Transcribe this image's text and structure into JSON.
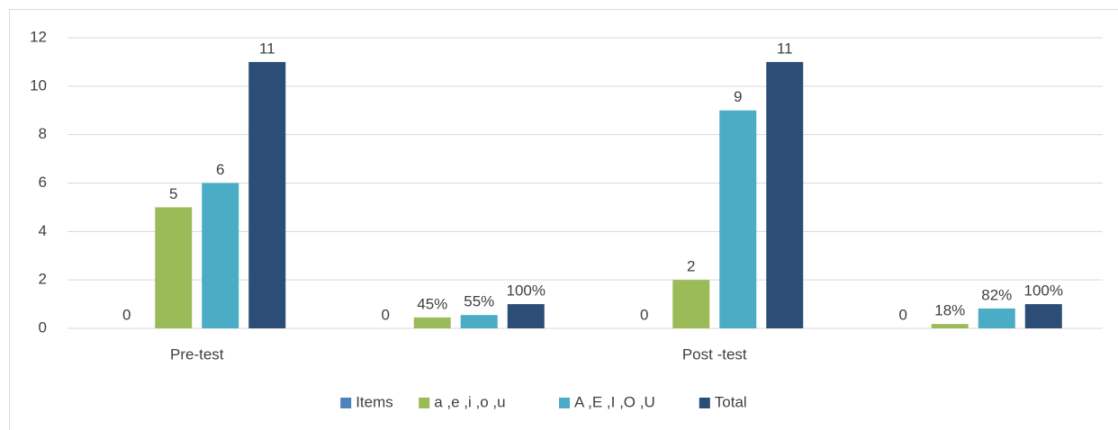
{
  "chart_data": {
    "type": "bar",
    "categories": [
      "Pre-test",
      null,
      "Post -test",
      null
    ],
    "series": [
      {
        "name": "Items",
        "color": "#4f81bd",
        "values": [
          0,
          0,
          0,
          0
        ]
      },
      {
        "name": "a ,e ,i ,o ,u",
        "color": "#9bbb59",
        "values": [
          5,
          0.45,
          2,
          0.18
        ],
        "value_labels": [
          "5",
          "45%",
          "2",
          "18%"
        ]
      },
      {
        "name": "A ,E ,I ,O ,U",
        "color": "#4bacc6",
        "values": [
          6,
          0.55,
          9,
          0.82
        ],
        "value_labels": [
          "6",
          "55%",
          "9",
          "82%"
        ]
      },
      {
        "name": "Total",
        "color": "#2c4d75",
        "values": [
          11,
          1,
          11,
          1
        ],
        "value_labels": [
          "11",
          "100%",
          "11",
          "100%"
        ]
      }
    ],
    "ylim": [
      0,
      12
    ],
    "yticks": [
      0,
      2,
      4,
      6,
      8,
      10,
      12
    ],
    "grid": true,
    "legend": "bottom"
  }
}
